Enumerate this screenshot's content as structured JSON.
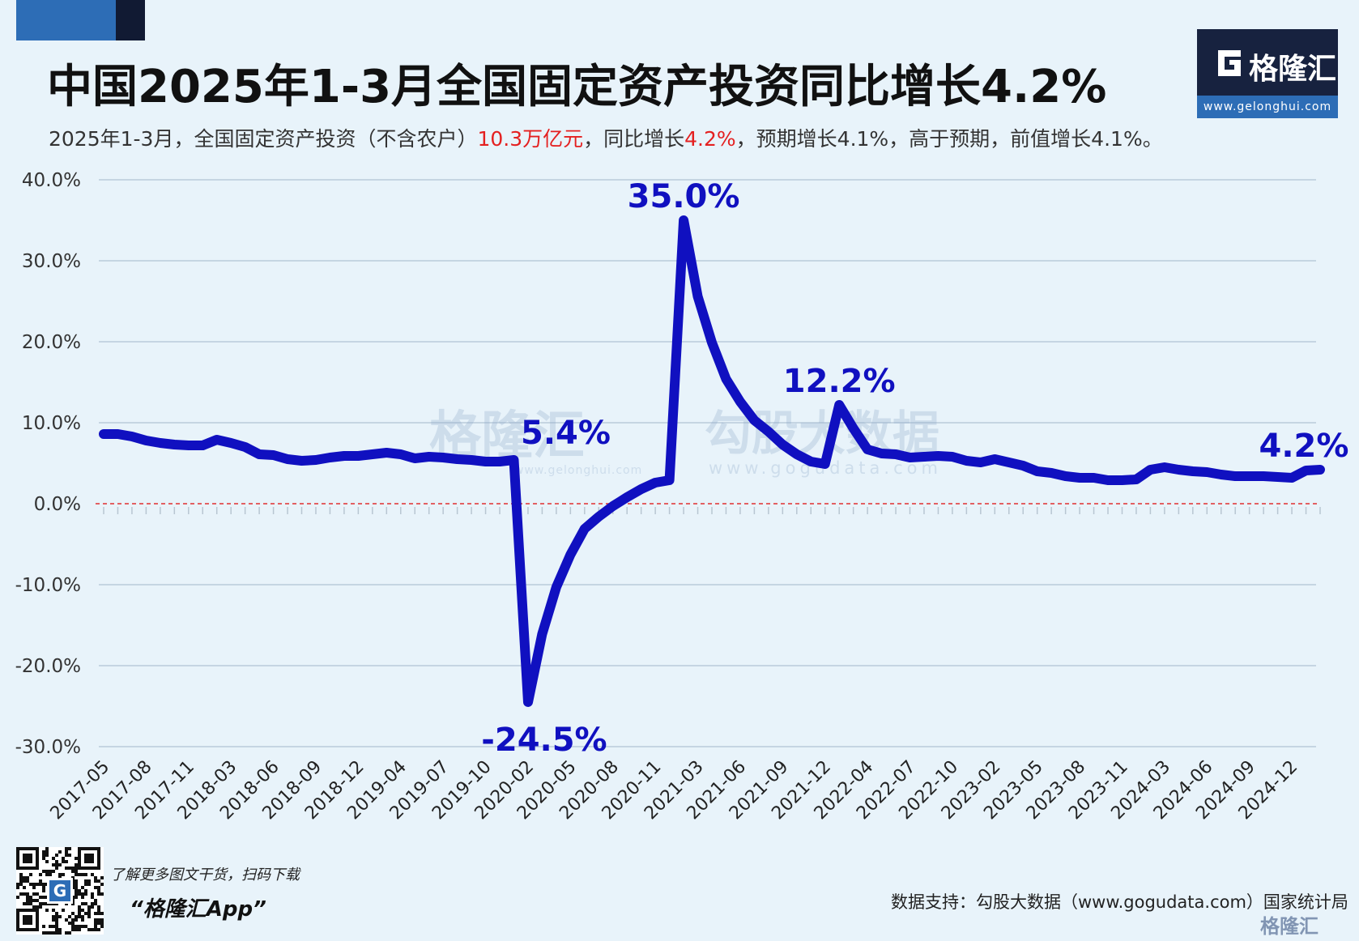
{
  "header": {
    "title": "中国2025年1-3月全国固定资产投资同比增长4.2%",
    "subtitle_parts": [
      {
        "text": "2025年1-3月，全国固定资产投资（不含农户）",
        "highlight": false
      },
      {
        "text": "10.3万亿元",
        "highlight": true
      },
      {
        "text": "，同比增长",
        "highlight": false
      },
      {
        "text": "4.2%",
        "highlight": true
      },
      {
        "text": "，预期增长4.1%，高于预期，前值增长4.1%。",
        "highlight": false
      }
    ],
    "highlight_color": "#e42020"
  },
  "logo": {
    "brand": "格隆汇",
    "url": "www.gelonghui.com"
  },
  "watermarks": {
    "left_brand": "格隆汇",
    "left_url": "www.gelonghui.com",
    "right_brand": "勾股大数据",
    "right_url": "www.gogudata.com"
  },
  "chart_data": {
    "type": "line",
    "title": "",
    "xlabel": "",
    "ylabel": "",
    "ylim": [
      -30,
      40
    ],
    "y_ticks": [
      "40.0%",
      "30.0%",
      "20.0%",
      "10.0%",
      "0.0%",
      "-10.0%",
      "-20.0%",
      "-30.0%"
    ],
    "y_tick_values": [
      40,
      30,
      20,
      10,
      0,
      -10,
      -20,
      -30
    ],
    "x_tick_labels": [
      "2017-05",
      "2017-08",
      "2017-11",
      "2018-03",
      "2018-06",
      "2018-09",
      "2018-12",
      "2019-04",
      "2019-07",
      "2019-10",
      "2020-02",
      "2020-05",
      "2020-08",
      "2020-11",
      "2021-03",
      "2021-06",
      "2021-09",
      "2021-12",
      "2022-04",
      "2022-07",
      "2022-10",
      "2023-02",
      "2023-05",
      "2023-08",
      "2023-11",
      "2024-03",
      "2024-06",
      "2024-09",
      "2024-12"
    ],
    "x_tick_indices": [
      0,
      3,
      6,
      9,
      12,
      15,
      18,
      21,
      24,
      27,
      30,
      33,
      36,
      39,
      42,
      45,
      48,
      51,
      54,
      57,
      60,
      63,
      66,
      69,
      72,
      75,
      78,
      81,
      84
    ],
    "grid": true,
    "zero_line": {
      "value": 0,
      "color": "#e03030",
      "style": "dashed"
    },
    "series": [
      {
        "color": "#1010c0",
        "values": [
          8.6,
          8.6,
          8.3,
          7.8,
          7.5,
          7.3,
          7.2,
          7.2,
          7.9,
          7.5,
          7.0,
          6.1,
          6.0,
          5.5,
          5.3,
          5.4,
          5.7,
          5.9,
          5.9,
          6.1,
          6.3,
          6.1,
          5.6,
          5.8,
          5.7,
          5.5,
          5.4,
          5.2,
          5.2,
          5.4,
          -24.5,
          -16.1,
          -10.3,
          -6.3,
          -3.1,
          -1.6,
          -0.3,
          0.8,
          1.8,
          2.6,
          2.9,
          35.0,
          25.6,
          19.9,
          15.4,
          12.6,
          10.3,
          8.9,
          7.3,
          6.1,
          5.2,
          4.9,
          12.2,
          9.3,
          6.7,
          6.2,
          6.1,
          5.7,
          5.8,
          5.9,
          5.8,
          5.3,
          5.1,
          5.5,
          5.1,
          4.7,
          4.0,
          3.8,
          3.4,
          3.2,
          3.2,
          2.9,
          2.9,
          3.0,
          4.2,
          4.5,
          4.2,
          4.0,
          3.9,
          3.6,
          3.4,
          3.4,
          3.4,
          3.3,
          3.2,
          4.1,
          4.2
        ],
        "highlights": [
          {
            "index": 29,
            "label": "5.4%",
            "position": "above-right"
          },
          {
            "index": 30,
            "label": "-24.5%",
            "position": "below"
          },
          {
            "index": 41,
            "label": "35.0%",
            "position": "above"
          },
          {
            "index": 52,
            "label": "12.2%",
            "position": "above"
          },
          {
            "index": 86,
            "label": "4.2%",
            "position": "above"
          }
        ]
      }
    ]
  },
  "footer": {
    "qr_icon_letter": "G",
    "tip": "了解更多图文干货，扫码下载",
    "app": "“格隆汇App”",
    "source": "数据支持：勾股大数据（www.gogudata.com）国家统计局",
    "brand": "格隆汇"
  }
}
